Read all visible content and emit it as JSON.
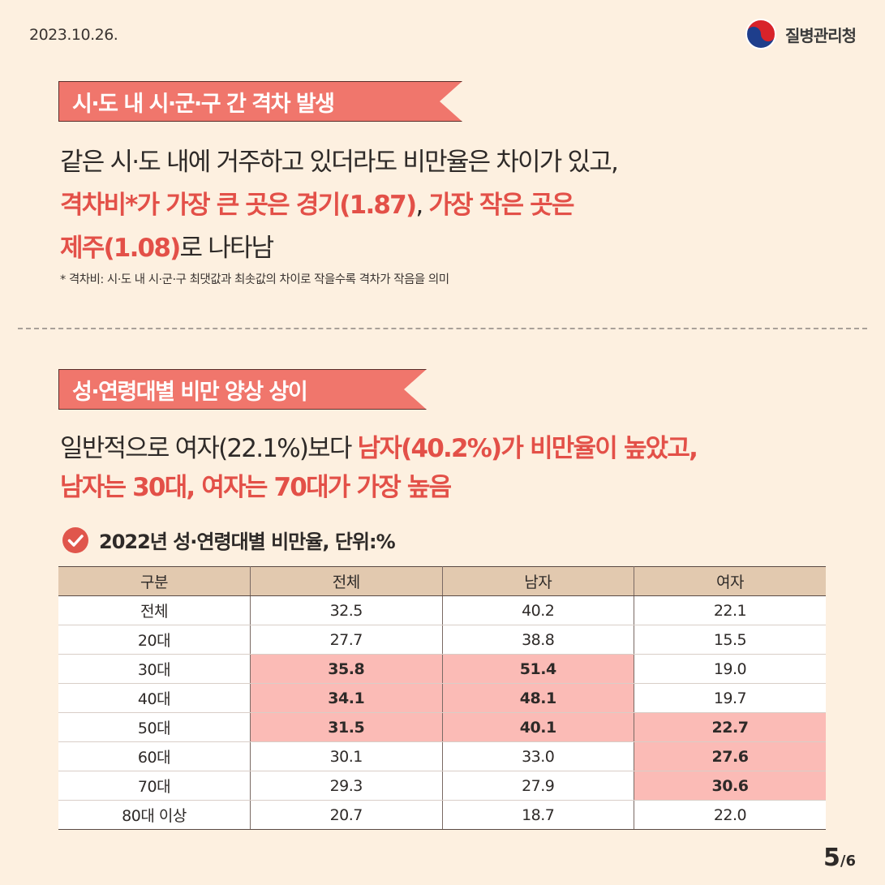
{
  "date": "2023.10.26.",
  "org": {
    "name": "질병관리청",
    "icon": "taegeuk-emblem-icon"
  },
  "section1": {
    "title": "시·도 내 시·군·구 간 격차 발생",
    "line1": "같은 시·도 내에 거주하고 있더라도 비만율은 차이가 있고,",
    "line2_red": "격차비*가 가장 큰 곳은 경기(1.87)",
    "line2_sep": ", ",
    "line2_red2": "가장 작은 곳은",
    "line3_red": "제주(1.08)",
    "line3_rest": "로 나타남",
    "footnote": "* 격차비: 시·도 내 시·군·구 최댓값과 최솟값의 차이로 작을수록 격차가 작음을 의미"
  },
  "section2": {
    "title": "성·연령대별 비만 양상 상이",
    "line1_plain": "일반적으로 여자(22.1%)보다 ",
    "line1_red": "남자(40.2%)가 비만율이 높았고,",
    "line2_red": "남자는 30대, 여자는 70대가 가장 높음",
    "table_title": "2022년 성·연령대별 비만율, 단위:%"
  },
  "table": {
    "headers": [
      "구분",
      "전체",
      "남자",
      "여자"
    ],
    "rows": [
      [
        "전체",
        "32.5",
        "40.2",
        "22.1"
      ],
      [
        "20대",
        "27.7",
        "38.8",
        "15.5"
      ],
      [
        "30대",
        "35.8",
        "51.4",
        "19.0"
      ],
      [
        "40대",
        "34.1",
        "48.1",
        "19.7"
      ],
      [
        "50대",
        "31.5",
        "40.1",
        "22.7"
      ],
      [
        "60대",
        "30.1",
        "33.0",
        "27.6"
      ],
      [
        "70대",
        "29.3",
        "27.9",
        "30.6"
      ],
      [
        "80대 이상",
        "20.7",
        "18.7",
        "22.0"
      ]
    ],
    "highlight_color": "#fbbbb6",
    "header_color": "#e2c9af"
  },
  "page": {
    "current": "5",
    "total": "/6"
  },
  "colors": {
    "accent": "#f0766c",
    "accent_text": "#e35048",
    "background": "#fdf0e0"
  }
}
